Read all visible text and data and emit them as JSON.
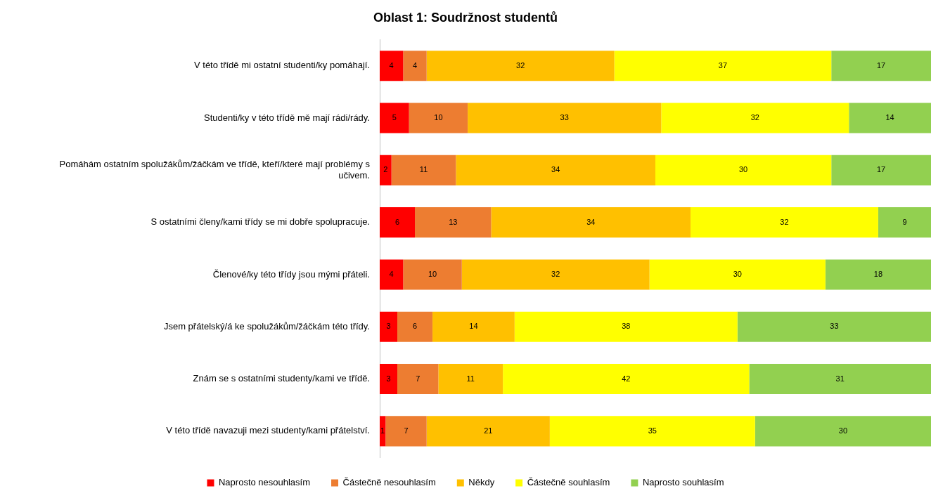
{
  "chart_data": {
    "type": "bar",
    "orientation": "horizontal",
    "stacked": true,
    "title": "Oblast 1: Soudržnost studentů",
    "categories": [
      "V této třídě mi ostatní studenti/ky pomáhají.",
      "Studenti/ky v této třídě mě mají rádi/rády.",
      "Pomáhám ostatním spolužákům/žáčkám ve třídě, kteří/které mají problémy s učivem.",
      "S ostatními členy/kami třídy se mi dobře spolupracuje.",
      "Členové/ky této třídy jsou mými přáteli.",
      "Jsem přátelský/á ke spolužákům/žáčkám této třídy.",
      "Znám se s ostatními studenty/kami ve třídě.",
      "V této třídě navazuji mezi studenty/kami přátelství."
    ],
    "series": [
      {
        "name": "Naprosto nesouhlasím",
        "color": "#ff0000",
        "values": [
          4,
          5,
          2,
          6,
          4,
          3,
          3,
          1
        ]
      },
      {
        "name": "Částečně nesouhlasím",
        "color": "#ed7d31",
        "values": [
          4,
          10,
          11,
          13,
          10,
          6,
          7,
          7
        ]
      },
      {
        "name": "Někdy",
        "color": "#ffc000",
        "values": [
          32,
          33,
          34,
          34,
          32,
          14,
          11,
          21
        ]
      },
      {
        "name": "Částečně souhlasím",
        "color": "#ffff00",
        "values": [
          37,
          32,
          30,
          32,
          30,
          38,
          42,
          35
        ]
      },
      {
        "name": "Naprosto souhlasím",
        "color": "#92d050",
        "values": [
          17,
          14,
          17,
          9,
          18,
          33,
          31,
          30
        ]
      }
    ],
    "xlim": [
      0,
      94
    ],
    "data_labels": true,
    "grid": false,
    "legend": "bottom",
    "tick_labels": "y"
  }
}
